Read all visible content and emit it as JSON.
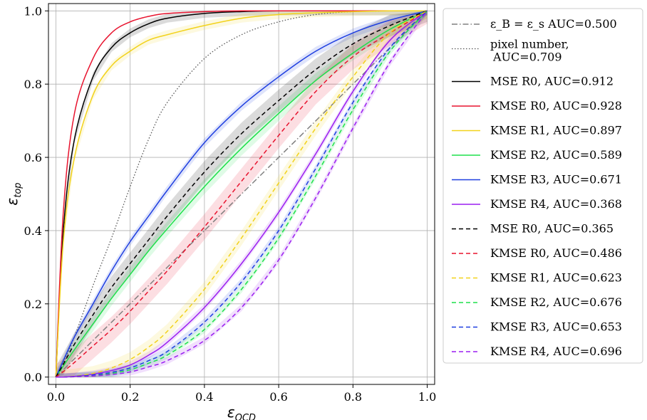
{
  "chart_data": {
    "type": "line",
    "xlabel": "ε_QCD",
    "ylabel": "ε_top",
    "xlim": [
      -0.02,
      1.02
    ],
    "ylim": [
      -0.02,
      1.02
    ],
    "xticks": [
      "0.0",
      "0.2",
      "0.4",
      "0.6",
      "0.8",
      "1.0"
    ],
    "yticks": [
      "0.0",
      "0.2",
      "0.4",
      "0.6",
      "0.8",
      "1.0"
    ],
    "grid": true,
    "legend_position": "outside-right",
    "x": [
      0,
      0.02,
      0.05,
      0.1,
      0.15,
      0.2,
      0.25,
      0.3,
      0.4,
      0.5,
      0.6,
      0.7,
      0.8,
      0.9,
      1.0
    ],
    "series": [
      {
        "name": "ε_B = ε_s AUC=0.500",
        "color": "#808080",
        "dash": "dashdot",
        "band": 0,
        "values": [
          0,
          0.02,
          0.05,
          0.1,
          0.15,
          0.2,
          0.25,
          0.3,
          0.4,
          0.5,
          0.6,
          0.7,
          0.8,
          0.9,
          1.0
        ]
      },
      {
        "name": "pixel number, AUC=0.709",
        "color": "#555555",
        "dash": "dotted",
        "band": 0,
        "values": [
          0,
          0.04,
          0.11,
          0.25,
          0.38,
          0.52,
          0.65,
          0.75,
          0.87,
          0.935,
          0.97,
          0.99,
          0.998,
          1.0,
          1.0
        ]
      },
      {
        "name": "MSE R0, AUC=0.912",
        "color": "#000000",
        "dash": "solid",
        "band": 0.012,
        "values": [
          0,
          0.4,
          0.65,
          0.82,
          0.9,
          0.94,
          0.965,
          0.98,
          0.993,
          0.998,
          1.0,
          1.0,
          1.0,
          1.0,
          1.0
        ]
      },
      {
        "name": "KMSE R0, AUC=0.928",
        "color": "#e8142f",
        "dash": "solid",
        "band": 0,
        "values": [
          0,
          0.45,
          0.72,
          0.87,
          0.94,
          0.97,
          0.985,
          0.993,
          0.998,
          1.0,
          1.0,
          1.0,
          1.0,
          1.0,
          1.0
        ]
      },
      {
        "name": "KMSE R1, AUC=0.897",
        "color": "#f2d21a",
        "dash": "solid",
        "band": 0.012,
        "values": [
          0,
          0.37,
          0.6,
          0.77,
          0.85,
          0.89,
          0.92,
          0.935,
          0.96,
          0.98,
          0.99,
          0.995,
          0.998,
          1.0,
          1.0
        ]
      },
      {
        "name": "KMSE R2, AUC=0.589",
        "color": "#1ee04b",
        "dash": "solid",
        "band": 0.02,
        "values": [
          0,
          0.03,
          0.075,
          0.145,
          0.215,
          0.28,
          0.345,
          0.405,
          0.52,
          0.625,
          0.72,
          0.81,
          0.885,
          0.95,
          1.0
        ]
      },
      {
        "name": "KMSE R3, AUC=0.671",
        "color": "#1f3fe0",
        "dash": "solid",
        "band": 0.012,
        "values": [
          0,
          0.045,
          0.11,
          0.2,
          0.29,
          0.37,
          0.44,
          0.51,
          0.64,
          0.74,
          0.82,
          0.89,
          0.94,
          0.975,
          1.0
        ]
      },
      {
        "name": "KMSE R4, AUC=0.368",
        "color": "#9b1ff0",
        "dash": "solid",
        "band": 0.01,
        "values": [
          0,
          0.0,
          0.002,
          0.008,
          0.018,
          0.033,
          0.06,
          0.095,
          0.19,
          0.31,
          0.45,
          0.61,
          0.78,
          0.92,
          1.0
        ]
      },
      {
        "name": "MSE R0, AUC=0.365",
        "color": "#000000",
        "dash": "dashed",
        "band": 0.03,
        "values": [
          0,
          0.035,
          0.09,
          0.17,
          0.245,
          0.31,
          0.375,
          0.44,
          0.56,
          0.665,
          0.755,
          0.84,
          0.91,
          0.96,
          1.0
        ]
      },
      {
        "name": "KMSE R0, AUC=0.486",
        "color": "#e8142f",
        "dash": "dashed",
        "band": 0.035,
        "values": [
          0,
          0.015,
          0.04,
          0.085,
          0.13,
          0.18,
          0.235,
          0.29,
          0.41,
          0.535,
          0.66,
          0.78,
          0.875,
          0.94,
          1.0
        ]
      },
      {
        "name": "KMSE R1, AUC=0.623",
        "color": "#f2d21a",
        "dash": "dashed",
        "band": 0.02,
        "values": [
          0,
          0.0,
          0.003,
          0.01,
          0.025,
          0.048,
          0.082,
          0.125,
          0.24,
          0.38,
          0.53,
          0.68,
          0.82,
          0.94,
          1.0
        ]
      },
      {
        "name": "KMSE R2, AUC=0.676",
        "color": "#1ee04b",
        "dash": "dashed",
        "band": 0.01,
        "values": [
          0,
          0.0,
          0.001,
          0.004,
          0.01,
          0.02,
          0.038,
          0.06,
          0.13,
          0.24,
          0.38,
          0.55,
          0.73,
          0.89,
          1.0
        ]
      },
      {
        "name": "KMSE R3, AUC=0.653",
        "color": "#1f3fe0",
        "dash": "dashed",
        "band": 0.01,
        "values": [
          0,
          0.0,
          0.002,
          0.006,
          0.013,
          0.025,
          0.045,
          0.07,
          0.15,
          0.26,
          0.4,
          0.57,
          0.75,
          0.9,
          1.0
        ]
      },
      {
        "name": "KMSE R4, AUC=0.696",
        "color": "#9b1ff0",
        "dash": "dashed",
        "band": 0.01,
        "values": [
          0,
          0.0,
          0.001,
          0.003,
          0.007,
          0.014,
          0.028,
          0.045,
          0.1,
          0.19,
          0.32,
          0.49,
          0.68,
          0.86,
          1.0
        ]
      }
    ]
  }
}
